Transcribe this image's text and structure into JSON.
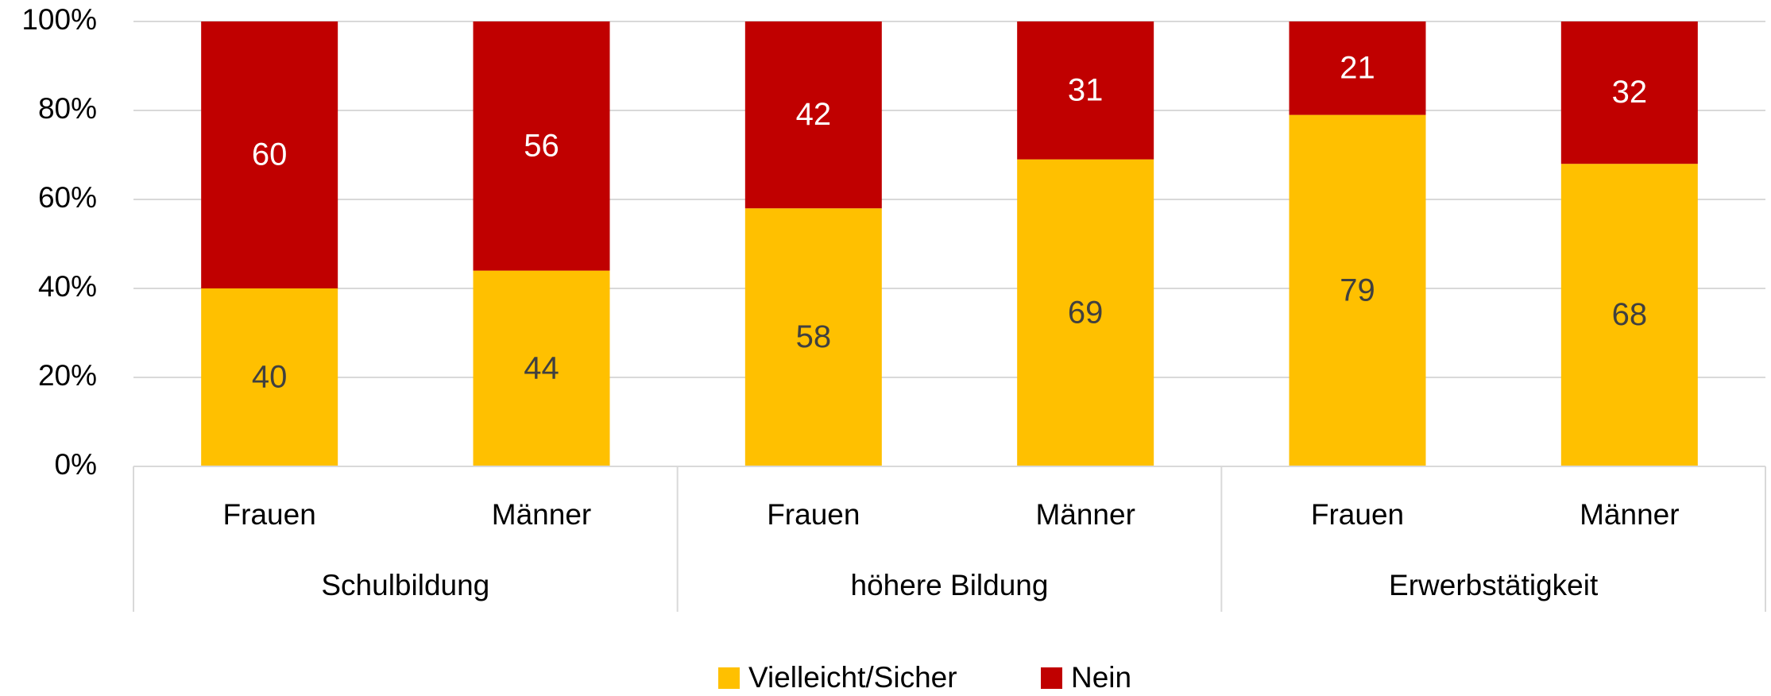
{
  "chart_data": {
    "type": "stacked-bar",
    "categories": [
      "Frauen",
      "Männer",
      "Frauen",
      "Männer",
      "Frauen",
      "Männer"
    ],
    "groups": [
      "Schulbildung",
      "höhere Bildung",
      "Erwerbstätigkeit"
    ],
    "series": [
      {
        "name": "Vielleicht/Sicher",
        "color": "#FFC000",
        "values": [
          40,
          44,
          58,
          69,
          79,
          68
        ]
      },
      {
        "name": "Nein",
        "color": "#C00000",
        "values": [
          60,
          56,
          42,
          31,
          21,
          32
        ]
      }
    ],
    "ylim": [
      0,
      100
    ],
    "yticks": [
      {
        "value": 0,
        "label": "0%"
      },
      {
        "value": 20,
        "label": "20%"
      },
      {
        "value": 40,
        "label": "40%"
      },
      {
        "value": 60,
        "label": "60%"
      },
      {
        "value": 80,
        "label": "80%"
      },
      {
        "value": 100,
        "label": "100%"
      }
    ],
    "grid": true,
    "legend": "bottom"
  }
}
